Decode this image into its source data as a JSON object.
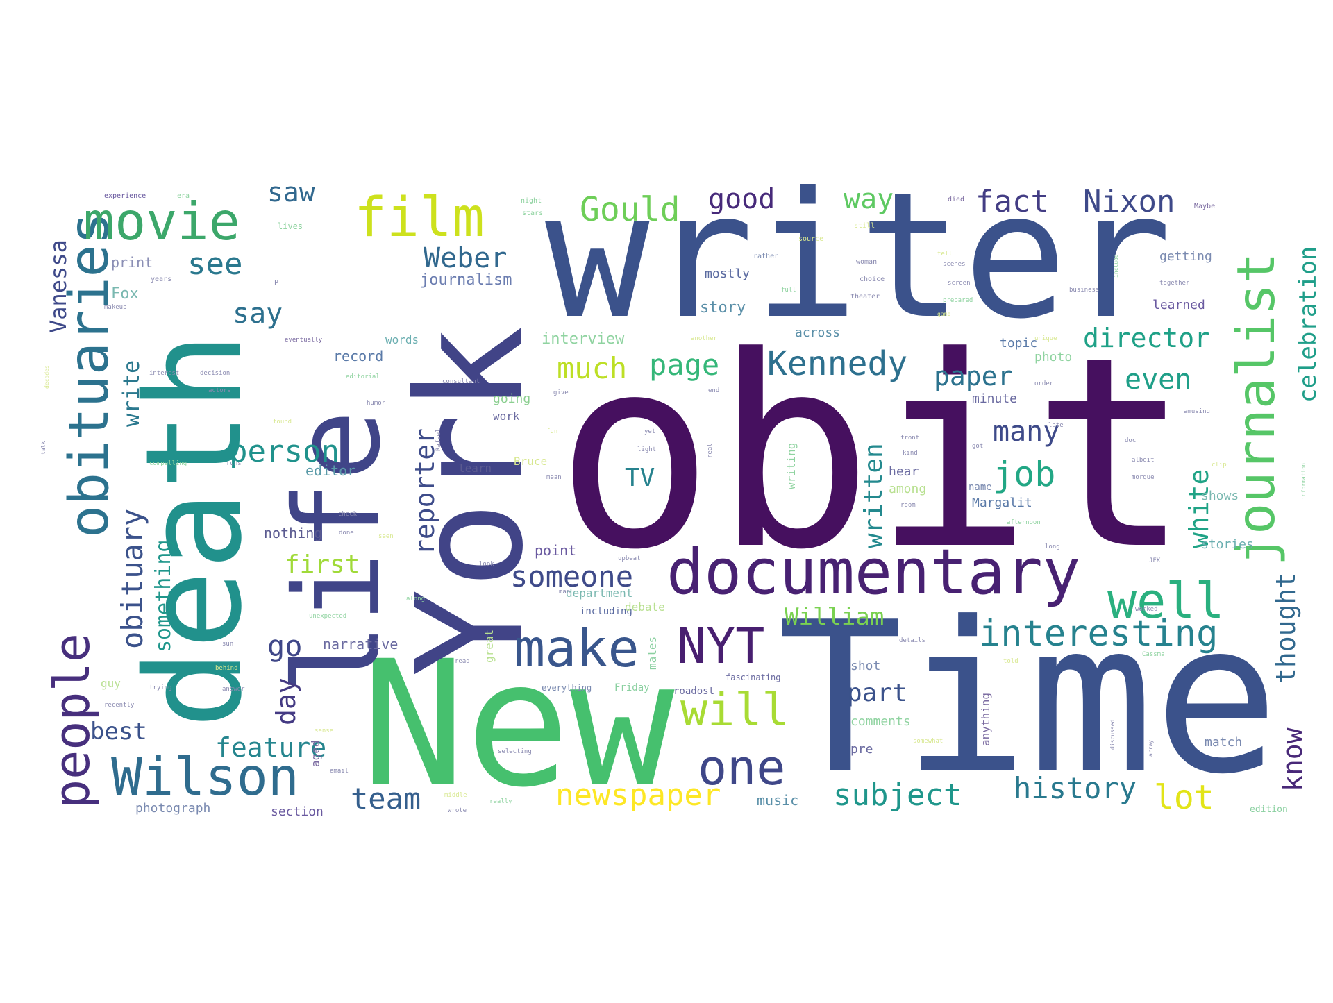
{
  "wordcloud": {
    "words": [
      {
        "id": "obit",
        "text": "obit",
        "color": "#46105f"
      },
      {
        "id": "time",
        "text": "Time",
        "color": "#3b528b"
      },
      {
        "id": "writer",
        "text": "writer",
        "color": "#3b528b"
      },
      {
        "id": "new",
        "text": "New",
        "color": "#46c06e"
      },
      {
        "id": "york",
        "text": "York",
        "color": "#414487"
      },
      {
        "id": "death",
        "text": "death",
        "color": "#21918c"
      },
      {
        "id": "life",
        "text": "life",
        "color": "#404588"
      },
      {
        "id": "documentary",
        "text": "documentary",
        "color": "#482172"
      },
      {
        "id": "obituaries",
        "text": "obituaries",
        "color": "#2c728e"
      },
      {
        "id": "people",
        "text": "people",
        "color": "#472f7d"
      },
      {
        "id": "movie",
        "text": "movie",
        "color": "#3ca76a"
      },
      {
        "id": "film",
        "text": "film",
        "color": "#cde11d"
      },
      {
        "id": "journalist",
        "text": "journalist",
        "color": "#56c667"
      },
      {
        "id": "wilson",
        "text": "Wilson",
        "color": "#2f6c8e"
      },
      {
        "id": "make",
        "text": "make",
        "color": "#39568c"
      },
      {
        "id": "nyt",
        "text": "NYT",
        "color": "#481f70"
      },
      {
        "id": "well",
        "text": "well",
        "color": "#2ab07f"
      },
      {
        "id": "one",
        "text": "one",
        "color": "#3f4788"
      },
      {
        "id": "will",
        "text": "will",
        "color": "#a8db34"
      },
      {
        "id": "interesting",
        "text": "interesting",
        "color": "#26828e"
      },
      {
        "id": "gould",
        "text": "Gould",
        "color": "#6ece58"
      },
      {
        "id": "kennedy",
        "text": "Kennedy",
        "color": "#2d708e"
      },
      {
        "id": "fact",
        "text": "fact",
        "color": "#433d84"
      },
      {
        "id": "nixon",
        "text": "Nixon",
        "color": "#3e4989"
      },
      {
        "id": "obituary",
        "text": "obituary",
        "color": "#3b528b"
      },
      {
        "id": "weber",
        "text": "Weber",
        "color": "#31688e"
      },
      {
        "id": "see",
        "text": "see",
        "color": "#2a788e"
      },
      {
        "id": "person",
        "text": "person",
        "color": "#20928c"
      },
      {
        "id": "someone",
        "text": "someone",
        "color": "#3e4a89"
      },
      {
        "id": "much",
        "text": "much",
        "color": "#bddf26"
      },
      {
        "id": "page",
        "text": "page",
        "color": "#35b779"
      },
      {
        "id": "newspaper",
        "text": "newspaper",
        "color": "#fde725"
      },
      {
        "id": "subject",
        "text": "subject",
        "color": "#1f968b"
      },
      {
        "id": "history",
        "text": "history",
        "color": "#29798e"
      },
      {
        "id": "lot",
        "text": "lot",
        "color": "#e2e418"
      },
      {
        "id": "job",
        "text": "job",
        "color": "#22a785"
      },
      {
        "id": "team",
        "text": "team",
        "color": "#355f8d"
      },
      {
        "id": "feature",
        "text": "feature",
        "color": "#25858e"
      },
      {
        "id": "written",
        "text": "written",
        "color": "#23898e"
      },
      {
        "id": "reporter",
        "text": "reporter",
        "color": "#3e4c8a"
      },
      {
        "id": "director",
        "text": "director",
        "color": "#1fa187"
      },
      {
        "id": "celebration",
        "text": "celebration",
        "color": "#1f9e89"
      },
      {
        "id": "thought",
        "text": "thought",
        "color": "#31688e"
      },
      {
        "id": "know",
        "text": "know",
        "color": "#482878"
      },
      {
        "id": "white",
        "text": "white",
        "color": "#20a386"
      },
      {
        "id": "even",
        "text": "even",
        "color": "#1f9f88"
      },
      {
        "id": "paper",
        "text": "paper",
        "color": "#2c728e"
      },
      {
        "id": "many",
        "text": "many",
        "color": "#3e4a89"
      },
      {
        "id": "good",
        "text": "good",
        "color": "#472a7a"
      },
      {
        "id": "way",
        "text": "way",
        "color": "#5ec962"
      },
      {
        "id": "saw",
        "text": "saw",
        "color": "#31688e"
      },
      {
        "id": "say",
        "text": "say",
        "color": "#2d708e"
      },
      {
        "id": "go",
        "text": "go",
        "color": "#3f4788"
      },
      {
        "id": "day",
        "text": "day",
        "color": "#443a83"
      },
      {
        "id": "best",
        "text": "best",
        "color": "#3b528b"
      },
      {
        "id": "first",
        "text": "first",
        "color": "#a0da39"
      },
      {
        "id": "william",
        "text": "William",
        "color": "#7ad151"
      },
      {
        "id": "part",
        "text": "part",
        "color": "#3b528b"
      },
      {
        "id": "tv",
        "text": "TV",
        "color": "#26828e"
      },
      {
        "id": "vanessa",
        "text": "Vanessa",
        "color": "#3e4989"
      },
      {
        "id": "write",
        "text": "write",
        "color": "#2a788e"
      },
      {
        "id": "something",
        "text": "something",
        "color": "#1f968b"
      },
      {
        "id": "journalism",
        "text": "journalism",
        "color": "#6b7db0"
      },
      {
        "id": "fox",
        "text": "Fox",
        "color": "#7ab8b0"
      },
      {
        "id": "print",
        "text": "print",
        "color": "#8b8fb5"
      },
      {
        "id": "story",
        "text": "story",
        "color": "#5a8fa8"
      },
      {
        "id": "mostly",
        "text": "mostly",
        "color": "#5a6aa0"
      },
      {
        "id": "interview",
        "text": "interview",
        "color": "#8fd3a0"
      },
      {
        "id": "words",
        "text": "words",
        "color": "#6aaeb0"
      },
      {
        "id": "record",
        "text": "record",
        "color": "#5a7aa8"
      },
      {
        "id": "editor",
        "text": "editor",
        "color": "#5a9aa8"
      },
      {
        "id": "learn",
        "text": "learn",
        "color": "#5a5a90"
      },
      {
        "id": "work",
        "text": "work",
        "color": "#6a6aa0"
      },
      {
        "id": "going",
        "text": "going",
        "color": "#8bcf90"
      },
      {
        "id": "nothing",
        "text": "nothing",
        "color": "#5a5a90"
      },
      {
        "id": "point",
        "text": "point",
        "color": "#6a5aa0"
      },
      {
        "id": "narrative",
        "text": "narrative",
        "color": "#6a6aa0"
      },
      {
        "id": "department",
        "text": "department",
        "color": "#7ab8b0"
      },
      {
        "id": "including",
        "text": "including",
        "color": "#5a6aa0"
      },
      {
        "id": "debate",
        "text": "debate",
        "color": "#b8e090"
      },
      {
        "id": "music",
        "text": "music",
        "color": "#5a8fa8"
      },
      {
        "id": "photograph",
        "text": "photograph",
        "color": "#7a8ab0"
      },
      {
        "id": "section",
        "text": "section",
        "color": "#6a5aa0"
      },
      {
        "id": "margalit",
        "text": "Margalit",
        "color": "#5a7aa8"
      },
      {
        "id": "shows",
        "text": "shows",
        "color": "#7ab8b0"
      },
      {
        "id": "stories",
        "text": "stories",
        "color": "#6aaeb0"
      },
      {
        "id": "match",
        "text": "match",
        "color": "#7a8ab0"
      },
      {
        "id": "edition",
        "text": "edition",
        "color": "#8ad0a0"
      },
      {
        "id": "getting",
        "text": "getting",
        "color": "#7a8ab0"
      },
      {
        "id": "learned",
        "text": "learned",
        "color": "#6a5aa0"
      },
      {
        "id": "topic",
        "text": "topic",
        "color": "#5a7aa8"
      },
      {
        "id": "photo",
        "text": "photo",
        "color": "#8fd3a0"
      },
      {
        "id": "minute",
        "text": "minute",
        "color": "#6a6aa0"
      },
      {
        "id": "across",
        "text": "across",
        "color": "#5a8fa8"
      },
      {
        "id": "among",
        "text": "among",
        "color": "#b8e090"
      },
      {
        "id": "hear",
        "text": "hear",
        "color": "#6a6aa0"
      },
      {
        "id": "name",
        "text": "name",
        "color": "#7a8ab0"
      },
      {
        "id": "comments",
        "text": "comments",
        "color": "#8fd3a0"
      },
      {
        "id": "pre",
        "text": "pre",
        "color": "#6a6aa0"
      },
      {
        "id": "shot",
        "text": "shot",
        "color": "#7a8ab0"
      },
      {
        "id": "anything",
        "text": "anything",
        "color": "#7a6aa0"
      },
      {
        "id": "writing",
        "text": "writing",
        "color": "#8fd3a0"
      },
      {
        "id": "aged",
        "text": "aged",
        "color": "#7a6aa0"
      },
      {
        "id": "males",
        "text": "males",
        "color": "#8ad0a0"
      },
      {
        "id": "great",
        "text": "great",
        "color": "#b8e090"
      },
      {
        "id": "bruce",
        "text": "Bruce",
        "color": "#d8e890"
      },
      {
        "id": "guy",
        "text": "guy",
        "color": "#b8e090"
      },
      {
        "id": "friday",
        "text": "Friday",
        "color": "#8ad0a0"
      },
      {
        "id": "everything",
        "text": "everything",
        "color": "#7a8ab0"
      },
      {
        "id": "roadost",
        "text": "roadost",
        "color": "#6a6aa0"
      },
      {
        "id": "fascinating",
        "text": "fascinating",
        "color": "#6a6aa0"
      },
      {
        "id": "small1",
        "text": "experience",
        "color": "#6a5aa0"
      },
      {
        "id": "small2",
        "text": "era",
        "color": "#8fd3a0"
      },
      {
        "id": "small3",
        "text": "night",
        "color": "#8fd3a0"
      },
      {
        "id": "small4",
        "text": "stars",
        "color": "#8fd3a0"
      },
      {
        "id": "small5",
        "text": "lives",
        "color": "#8fd3a0"
      },
      {
        "id": "small6",
        "text": "died",
        "color": "#7a6aa0"
      },
      {
        "id": "small7",
        "text": "source",
        "color": "#d8e890"
      },
      {
        "id": "small8",
        "text": "still",
        "color": "#d8e890"
      },
      {
        "id": "small9",
        "text": "Maybe",
        "color": "#7a6aa0"
      },
      {
        "id": "small10",
        "text": "rather",
        "color": "#7a8ab0"
      },
      {
        "id": "small11",
        "text": "woman",
        "color": "#8a8ab0"
      },
      {
        "id": "small12",
        "text": "choice",
        "color": "#8a8ab0"
      },
      {
        "id": "small13",
        "text": "theater",
        "color": "#8a8ab0"
      },
      {
        "id": "small14",
        "text": "years",
        "color": "#8a8ab0"
      },
      {
        "id": "small15",
        "text": "makeup",
        "color": "#8a8ab0"
      },
      {
        "id": "small16",
        "text": "eventually",
        "color": "#7a6aa0"
      },
      {
        "id": "small17",
        "text": "another",
        "color": "#d8e890"
      },
      {
        "id": "small18",
        "text": "interest",
        "color": "#8a8ab0"
      },
      {
        "id": "small19",
        "text": "decision",
        "color": "#8a8ab0"
      },
      {
        "id": "small20",
        "text": "editorial",
        "color": "#8fd3a0"
      },
      {
        "id": "small21",
        "text": "consultant",
        "color": "#8a8ab0"
      },
      {
        "id": "small22",
        "text": "give",
        "color": "#8a8ab0"
      },
      {
        "id": "small23",
        "text": "end",
        "color": "#8a8ab0"
      },
      {
        "id": "small24",
        "text": "actors",
        "color": "#8a8ab0"
      },
      {
        "id": "small25",
        "text": "humor",
        "color": "#8a8ab0"
      },
      {
        "id": "small26",
        "text": "found",
        "color": "#d8e890"
      },
      {
        "id": "small27",
        "text": "Rafael",
        "color": "#8a8ab0"
      },
      {
        "id": "small28",
        "text": "fun",
        "color": "#d8e890"
      },
      {
        "id": "small29",
        "text": "yet",
        "color": "#8a8ab0"
      },
      {
        "id": "small30",
        "text": "compelling",
        "color": "#8fd3a0"
      },
      {
        "id": "small31",
        "text": "runs",
        "color": "#8a8ab0"
      },
      {
        "id": "small32",
        "text": "light",
        "color": "#8a8ab0"
      },
      {
        "id": "small33",
        "text": "real",
        "color": "#8a8ab0"
      },
      {
        "id": "small34",
        "text": "mean",
        "color": "#8a8ab0"
      },
      {
        "id": "small35",
        "text": "check",
        "color": "#8a8ab0"
      },
      {
        "id": "small36",
        "text": "done",
        "color": "#8a8ab0"
      },
      {
        "id": "small37",
        "text": "seen",
        "color": "#d8e890"
      },
      {
        "id": "small38",
        "text": "look",
        "color": "#8a8ab0"
      },
      {
        "id": "small39",
        "text": "upbeat",
        "color": "#8a8ab0"
      },
      {
        "id": "small40",
        "text": "man",
        "color": "#8a8ab0"
      },
      {
        "id": "small41",
        "text": "along",
        "color": "#8fd3a0"
      },
      {
        "id": "small42",
        "text": "unexpected",
        "color": "#8fd3a0"
      },
      {
        "id": "small43",
        "text": "sun",
        "color": "#8a8ab0"
      },
      {
        "id": "small44",
        "text": "behind",
        "color": "#d8e890"
      },
      {
        "id": "small45",
        "text": "trying",
        "color": "#8a8ab0"
      },
      {
        "id": "small46",
        "text": "recently",
        "color": "#8a8ab0"
      },
      {
        "id": "small47",
        "text": "answer",
        "color": "#8a8ab0"
      },
      {
        "id": "small48",
        "text": "sense",
        "color": "#d8e890"
      },
      {
        "id": "small49",
        "text": "selecting",
        "color": "#8a8ab0"
      },
      {
        "id": "small50",
        "text": "email",
        "color": "#8a8ab0"
      },
      {
        "id": "small51",
        "text": "middle",
        "color": "#d8e890"
      },
      {
        "id": "small52",
        "text": "wrote",
        "color": "#8a8ab0"
      },
      {
        "id": "small53",
        "text": "really",
        "color": "#8fd3a0"
      },
      {
        "id": "small54",
        "text": "read",
        "color": "#8a8ab0"
      },
      {
        "id": "small55",
        "text": "screen",
        "color": "#8a8ab0"
      },
      {
        "id": "small56",
        "text": "business",
        "color": "#8a8ab0"
      },
      {
        "id": "small57",
        "text": "together",
        "color": "#8a8ab0"
      },
      {
        "id": "small58",
        "text": "prepared",
        "color": "#8fd3a0"
      },
      {
        "id": "small59",
        "text": "full",
        "color": "#8fd3a0"
      },
      {
        "id": "small60",
        "text": "unique",
        "color": "#d8e890"
      },
      {
        "id": "small61",
        "text": "order",
        "color": "#8a8ab0"
      },
      {
        "id": "small62",
        "text": "amusing",
        "color": "#8a8ab0"
      },
      {
        "id": "small63",
        "text": "late",
        "color": "#8a8ab0"
      },
      {
        "id": "small64",
        "text": "front",
        "color": "#8a8ab0"
      },
      {
        "id": "small65",
        "text": "kind",
        "color": "#8a8ab0"
      },
      {
        "id": "small66",
        "text": "got",
        "color": "#8a8ab0"
      },
      {
        "id": "small67",
        "text": "doc",
        "color": "#8a8ab0"
      },
      {
        "id": "small68",
        "text": "albeit",
        "color": "#8a8ab0"
      },
      {
        "id": "small69",
        "text": "morgue",
        "color": "#8a8ab0"
      },
      {
        "id": "small70",
        "text": "room",
        "color": "#8a8ab0"
      },
      {
        "id": "small71",
        "text": "afternoon",
        "color": "#8fd3a0"
      },
      {
        "id": "small72",
        "text": "long",
        "color": "#8a8ab0"
      },
      {
        "id": "small73",
        "text": "JFK",
        "color": "#8a8ab0"
      },
      {
        "id": "small74",
        "text": "worked",
        "color": "#8a8ab0"
      },
      {
        "id": "small75",
        "text": "details",
        "color": "#8a8ab0"
      },
      {
        "id": "small76",
        "text": "Cassma",
        "color": "#8fd3a0"
      },
      {
        "id": "small77",
        "text": "told",
        "color": "#d8e890"
      },
      {
        "id": "small78",
        "text": "somewhat",
        "color": "#d8e890"
      },
      {
        "id": "small79",
        "text": "decades",
        "color": "#d8e890"
      },
      {
        "id": "small80",
        "text": "talk",
        "color": "#8a8ab0"
      },
      {
        "id": "small81",
        "text": "information",
        "color": "#8fd3a0"
      },
      {
        "id": "small82",
        "text": "clip",
        "color": "#d8e890"
      },
      {
        "id": "small83",
        "text": "discussed",
        "color": "#8a8ab0"
      },
      {
        "id": "small84",
        "text": "array",
        "color": "#8a8ab0"
      },
      {
        "id": "small85",
        "text": "P",
        "color": "#8a8ab0"
      },
      {
        "id": "small86",
        "text": "tell",
        "color": "#d8e890"
      },
      {
        "id": "small87",
        "text": "scenes",
        "color": "#8a8ab0"
      },
      {
        "id": "small88",
        "text": "include",
        "color": "#8fd3a0"
      },
      {
        "id": "small89",
        "text": "game",
        "color": "#d8e890"
      }
    ]
  }
}
